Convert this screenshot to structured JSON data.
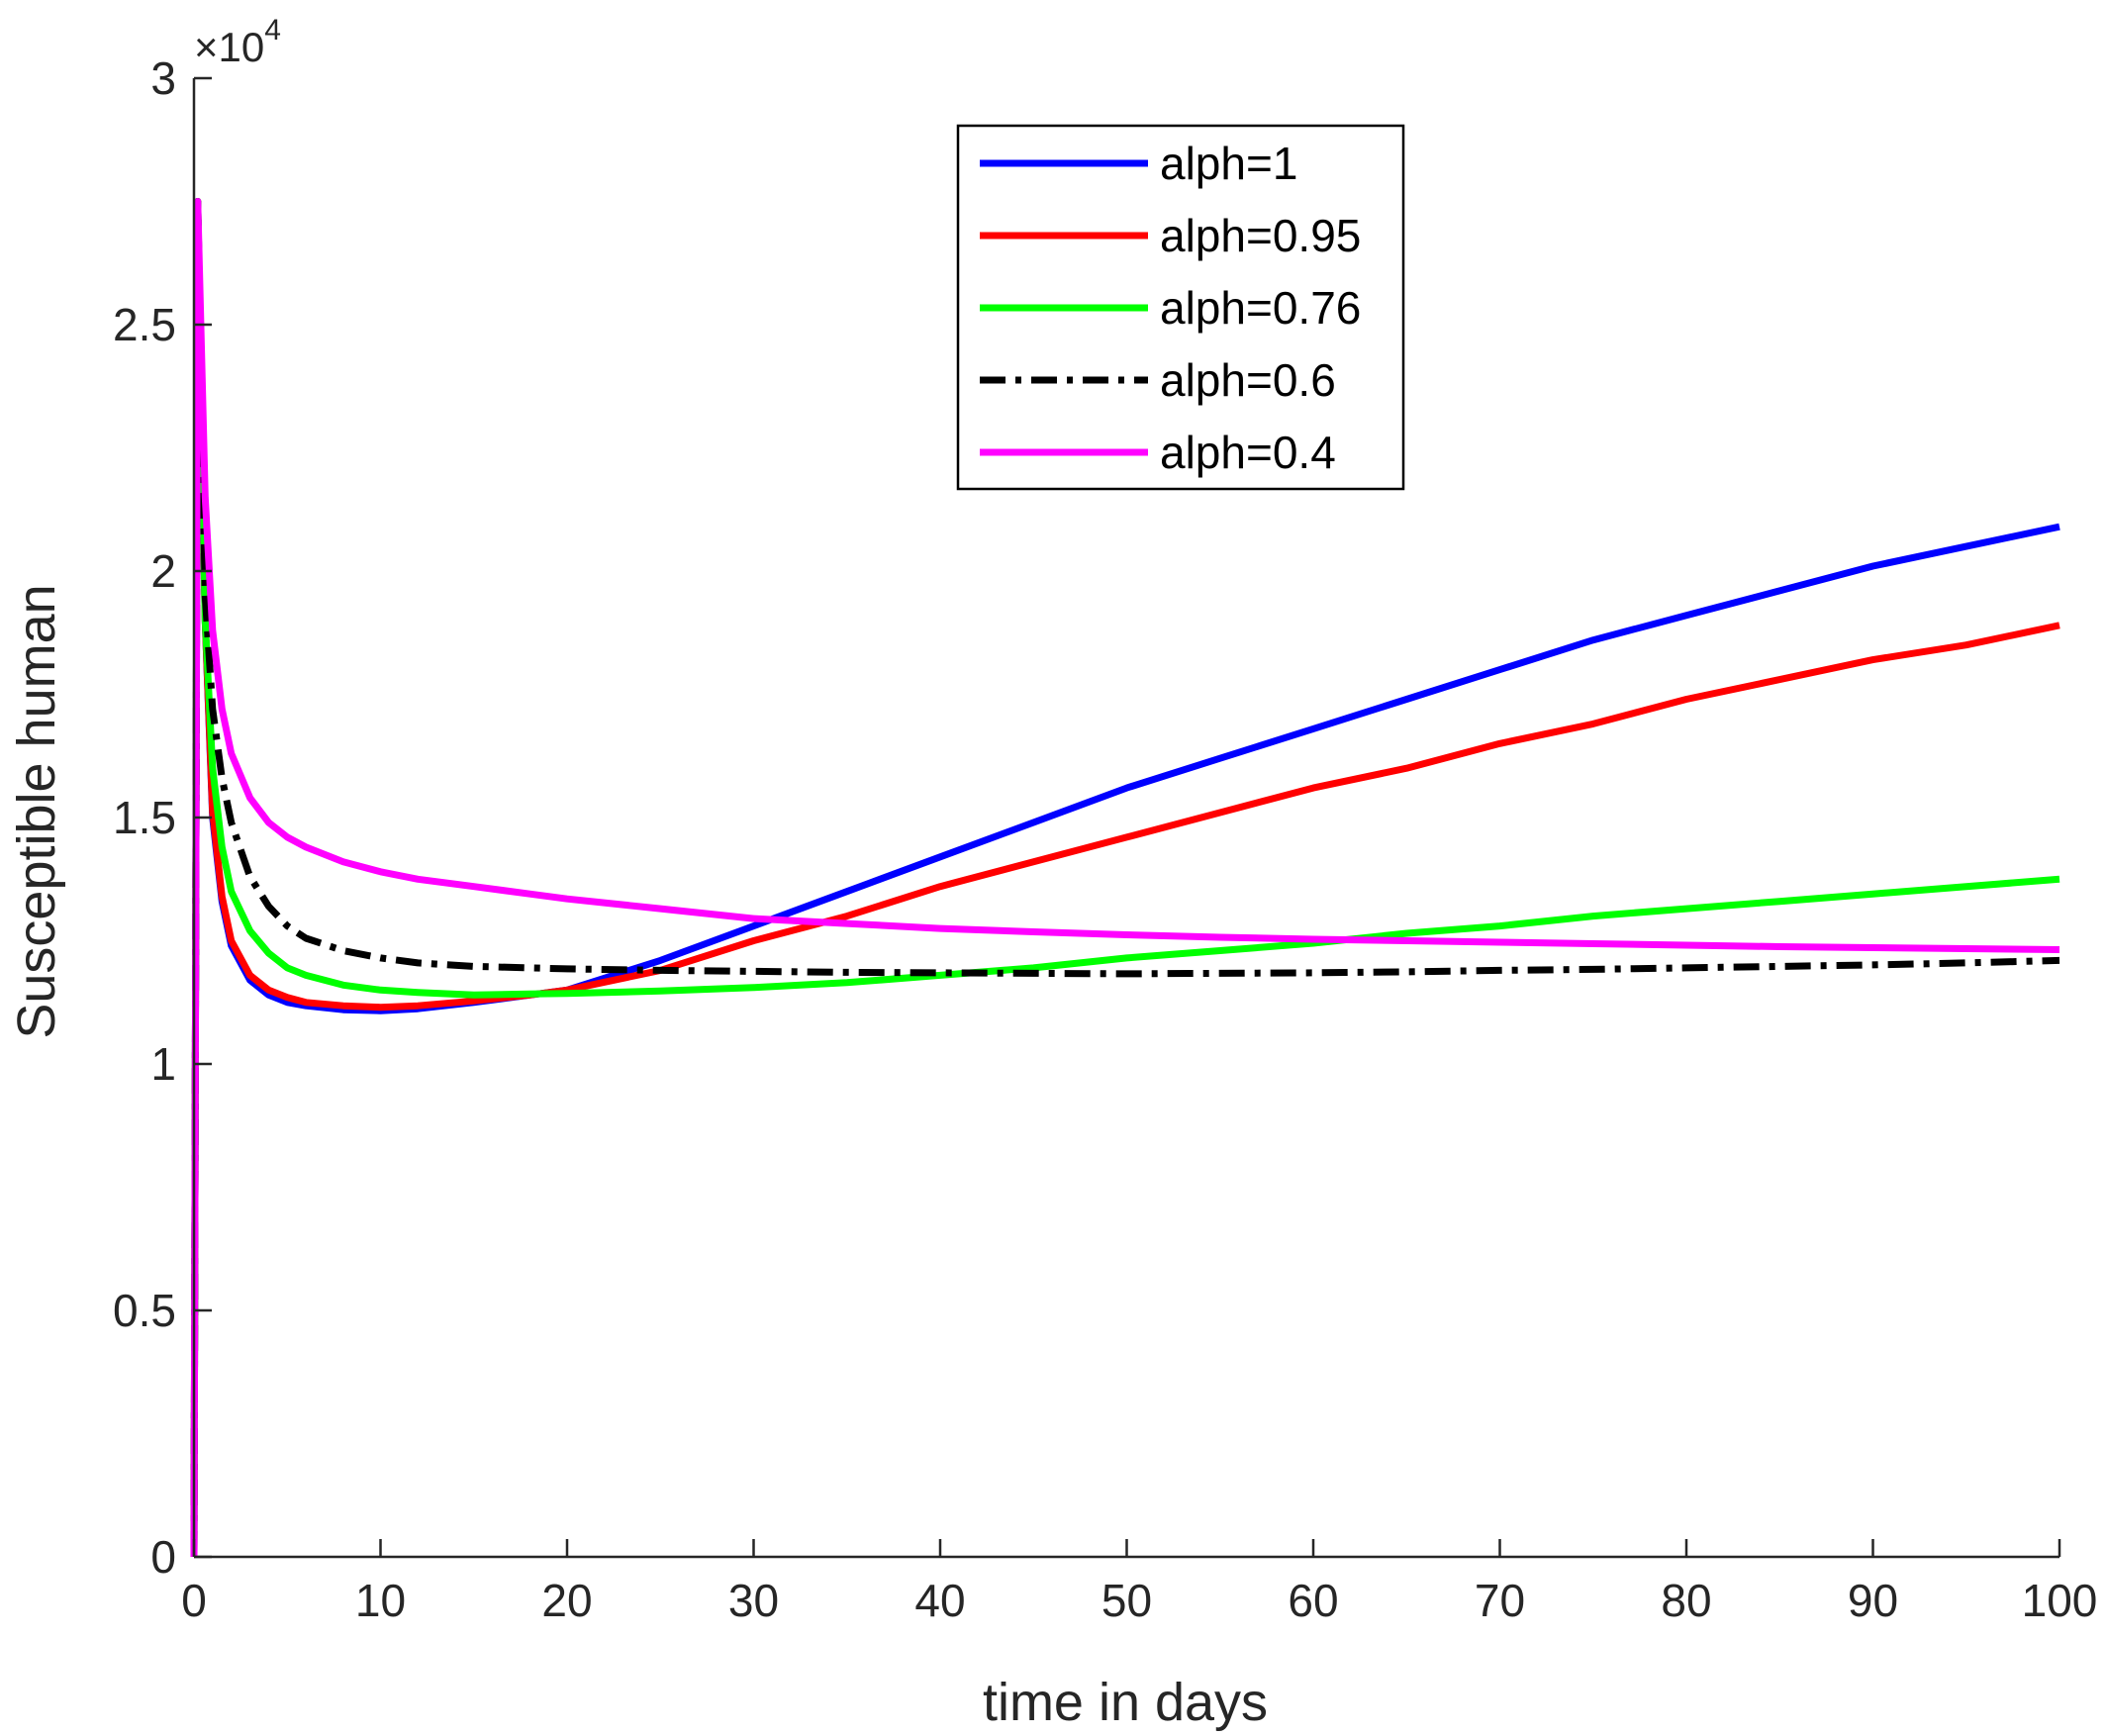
{
  "chart_data": {
    "type": "line",
    "xlabel": "time in days",
    "ylabel": "Susceptible human",
    "xlim": [
      0,
      100
    ],
    "ylim": [
      0,
      30000
    ],
    "xticks": [
      0,
      10,
      20,
      30,
      40,
      50,
      60,
      70,
      80,
      90,
      100
    ],
    "yticks": [
      0,
      5000,
      10000,
      15000,
      20000,
      25000,
      30000
    ],
    "ytick_labels": [
      "0",
      "0.5",
      "1",
      "1.5",
      "2",
      "2.5",
      "3"
    ],
    "y_exponent": {
      "base": "10",
      "power": "4",
      "times": "×"
    },
    "grid": false,
    "legend_position": "top-center",
    "series": [
      {
        "name": "alph=1",
        "color": "#0000ff",
        "dash": "solid",
        "x": [
          0,
          0.2,
          0.6,
          1,
          1.5,
          2,
          3,
          4,
          5,
          6,
          8,
          10,
          12,
          15,
          18,
          20,
          25,
          30,
          35,
          40,
          45,
          50,
          55,
          60,
          65,
          70,
          75,
          80,
          85,
          90,
          95,
          100
        ],
        "y": [
          0,
          27500,
          19000,
          15000,
          13300,
          12400,
          11700,
          11400,
          11250,
          11180,
          11100,
          11080,
          11120,
          11250,
          11400,
          11500,
          12100,
          12800,
          13500,
          14200,
          14900,
          15600,
          16200,
          16800,
          17400,
          18000,
          18600,
          19100,
          19600,
          20100,
          20500,
          20900
        ]
      },
      {
        "name": "alph=0.95",
        "color": "#ff0000",
        "dash": "solid",
        "x": [
          0,
          0.2,
          0.6,
          1,
          1.5,
          2,
          3,
          4,
          5,
          6,
          8,
          10,
          12,
          15,
          18,
          20,
          25,
          30,
          35,
          40,
          45,
          50,
          55,
          60,
          65,
          70,
          75,
          80,
          85,
          90,
          95,
          100
        ],
        "y": [
          0,
          27500,
          19000,
          15100,
          13400,
          12500,
          11800,
          11500,
          11350,
          11250,
          11180,
          11150,
          11180,
          11280,
          11400,
          11500,
          11900,
          12500,
          13000,
          13600,
          14100,
          14600,
          15100,
          15600,
          16000,
          16500,
          16900,
          17400,
          17800,
          18200,
          18500,
          18900
        ]
      },
      {
        "name": "alph=0.76",
        "color": "#00ff00",
        "dash": "solid",
        "x": [
          0,
          0.2,
          0.6,
          1,
          1.5,
          2,
          3,
          4,
          5,
          6,
          8,
          10,
          12,
          15,
          18,
          20,
          25,
          30,
          35,
          40,
          45,
          50,
          55,
          60,
          65,
          70,
          75,
          80,
          85,
          90,
          95,
          100
        ],
        "y": [
          0,
          27500,
          19000,
          16000,
          14400,
          13500,
          12700,
          12250,
          11950,
          11800,
          11600,
          11500,
          11450,
          11400,
          11420,
          11430,
          11480,
          11550,
          11650,
          11800,
          11950,
          12150,
          12300,
          12450,
          12650,
          12800,
          13000,
          13150,
          13300,
          13450,
          13600,
          13750
        ]
      },
      {
        "name": "alph=0.6",
        "color": "#000000",
        "dash": "dashdot",
        "x": [
          0,
          0.2,
          0.6,
          1,
          1.5,
          2,
          3,
          4,
          5,
          6,
          8,
          10,
          12,
          15,
          18,
          20,
          25,
          30,
          35,
          40,
          45,
          50,
          55,
          60,
          65,
          70,
          75,
          80,
          85,
          90,
          95,
          100
        ],
        "y": [
          0,
          27500,
          19500,
          17200,
          15800,
          14900,
          13800,
          13200,
          12800,
          12550,
          12300,
          12150,
          12050,
          11980,
          11950,
          11930,
          11900,
          11880,
          11860,
          11850,
          11840,
          11830,
          11840,
          11850,
          11870,
          11900,
          11920,
          11950,
          11980,
          12010,
          12050,
          12100
        ]
      },
      {
        "name": "alph=0.4",
        "color": "#ff00ff",
        "dash": "solid",
        "x": [
          0,
          0.2,
          0.6,
          1,
          1.5,
          2,
          3,
          4,
          5,
          6,
          8,
          10,
          12,
          15,
          18,
          20,
          25,
          30,
          35,
          40,
          45,
          50,
          55,
          60,
          65,
          70,
          75,
          80,
          85,
          90,
          95,
          100
        ],
        "y": [
          0,
          27500,
          21500,
          18800,
          17200,
          16300,
          15400,
          14900,
          14600,
          14400,
          14100,
          13900,
          13750,
          13600,
          13450,
          13350,
          13150,
          12950,
          12850,
          12750,
          12680,
          12620,
          12570,
          12530,
          12500,
          12470,
          12440,
          12410,
          12380,
          12360,
          12340,
          12320
        ]
      }
    ]
  }
}
